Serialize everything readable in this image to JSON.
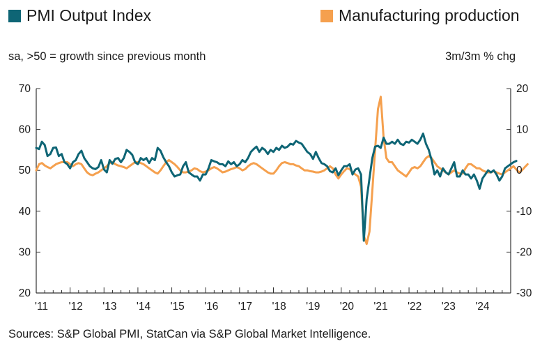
{
  "chart_data": {
    "type": "line",
    "title": "",
    "subtitle_left": "sa, >50 = growth since previous month",
    "subtitle_right": "3m/3m % chg",
    "source": "Sources: S&P Global PMI, StatCan via S&P Global Market Intelligence.",
    "x_start": 2011.0,
    "x_end": 2025.0,
    "x_tick_labels": [
      "'11",
      "'12",
      "'13",
      "'14",
      "'15",
      "'16",
      "'17",
      "'18",
      "'19",
      "'20",
      "'21",
      "'22",
      "'23",
      "'24"
    ],
    "y_left": {
      "ylim": [
        20,
        70
      ],
      "ticks": [
        20,
        30,
        40,
        50,
        60,
        70
      ]
    },
    "y_right": {
      "ylim": [
        -30,
        20
      ],
      "ticks": [
        -30,
        -20,
        -10,
        0,
        10,
        20
      ]
    },
    "series": [
      {
        "name": "PMI Output Index",
        "color": "#0e6575",
        "axis": "left",
        "values": [
          55.5,
          55.2,
          57.0,
          56.2,
          53.5,
          54.0,
          55.5,
          55.6,
          53.5,
          54.0,
          52.0,
          51.5,
          50.5,
          52.0,
          52.5,
          54.0,
          54.8,
          53.0,
          52.0,
          51.0,
          50.5,
          50.3,
          50.8,
          52.5,
          50.2,
          49.5,
          52.5,
          51.6,
          52.8,
          53.0,
          52.0,
          53.0,
          55.0,
          54.5,
          53.8,
          52.0,
          51.5,
          53.0,
          52.5,
          53.0,
          51.8,
          53.0,
          52.5,
          55.5,
          54.8,
          53.2,
          52.0,
          51.0,
          49.5,
          48.5,
          48.8,
          49.0,
          51.0,
          52.0,
          49.5,
          49.0,
          48.5,
          48.5,
          47.5,
          49.0,
          49.0,
          50.5,
          52.5,
          52.2,
          52.0,
          51.5,
          51.5,
          51.0,
          52.2,
          51.5,
          52.0,
          51.0,
          51.5,
          52.5,
          52.0,
          53.0,
          54.5,
          55.2,
          55.8,
          54.5,
          55.5,
          55.0,
          54.0,
          55.0,
          54.5,
          55.5,
          55.0,
          56.0,
          55.5,
          55.8,
          56.5,
          56.3,
          57.2,
          56.8,
          56.5,
          55.5,
          54.5,
          54.0,
          52.8,
          54.5,
          53.0,
          51.8,
          51.5,
          51.0,
          49.8,
          49.5,
          50.5,
          48.8,
          50.0,
          51.0,
          51.0,
          51.5,
          49.0,
          50.2,
          50.5,
          49.0,
          32.8,
          43.0,
          48.0,
          53.0,
          55.8,
          56.0,
          55.5,
          58.0,
          56.5,
          56.5,
          57.0,
          56.5,
          57.5,
          56.5,
          56.2,
          57.0,
          56.8,
          57.5,
          57.0,
          56.5,
          57.5,
          59.0,
          56.5,
          55.0,
          52.5,
          49.0,
          50.0,
          48.5,
          50.5,
          49.5,
          49.0,
          50.5,
          52.0,
          48.5,
          48.5,
          50.0,
          49.0,
          49.0,
          48.0,
          49.0,
          47.5,
          45.5,
          48.0,
          49.0,
          50.0,
          49.5,
          50.0,
          49.0,
          47.5,
          48.5,
          50.5,
          51.0,
          51.5,
          52.0,
          52.3
        ]
      },
      {
        "name": "Manufacturing production",
        "color": "#f5a04e",
        "axis": "right",
        "values": [
          0.0,
          1.5,
          1.8,
          1.2,
          0.8,
          0.5,
          1.0,
          1.5,
          1.8,
          2.0,
          2.0,
          2.0,
          1.5,
          1.0,
          1.5,
          1.8,
          1.5,
          0.5,
          -0.5,
          -1.0,
          -1.2,
          -0.8,
          -0.5,
          0.0,
          0.5,
          1.0,
          1.8,
          2.0,
          1.5,
          1.2,
          1.0,
          0.8,
          0.5,
          1.0,
          1.5,
          2.0,
          2.0,
          1.8,
          1.5,
          1.0,
          0.5,
          0.0,
          -0.5,
          -0.8,
          0.0,
          1.0,
          2.0,
          2.5,
          2.0,
          1.5,
          0.8,
          0.0,
          -0.5,
          -0.5,
          -0.3,
          0.0,
          0.5,
          0.3,
          -0.2,
          -0.5,
          -0.3,
          0.0,
          0.5,
          0.8,
          0.5,
          0.0,
          -0.5,
          -0.3,
          0.0,
          0.3,
          0.5,
          0.8,
          0.5,
          0.0,
          0.3,
          1.0,
          1.5,
          1.8,
          1.5,
          1.0,
          0.5,
          0.0,
          -0.5,
          -0.8,
          -0.8,
          0.0,
          1.0,
          1.8,
          2.0,
          1.8,
          1.5,
          1.5,
          1.2,
          1.0,
          0.5,
          0.0,
          0.0,
          -0.2,
          -0.3,
          -0.5,
          -0.5,
          -0.3,
          0.0,
          0.5,
          1.0,
          0.5,
          -1.0,
          -2.0,
          -1.0,
          -0.2,
          0.5,
          0.3,
          -0.5,
          -1.0,
          -1.5,
          -4.0,
          -16.0,
          -18.0,
          -15.0,
          -5.0,
          5.0,
          15.0,
          18.0,
          8.0,
          3.0,
          2.0,
          2.0,
          1.0,
          0.0,
          -0.5,
          -1.0,
          -1.5,
          -0.5,
          0.5,
          0.8,
          0.5,
          1.0,
          2.0,
          3.0,
          3.5,
          3.0,
          2.0,
          1.0,
          0.5,
          0.0,
          -0.5,
          -1.0,
          -0.5,
          0.0,
          -0.5,
          -0.8,
          -0.8,
          0.5,
          1.5,
          1.5,
          1.0,
          0.5,
          0.5,
          0.0,
          -0.3,
          -0.5,
          -0.5,
          -0.2,
          -0.5,
          -0.8,
          -1.0,
          -0.5,
          0.0,
          0.5,
          1.0,
          0.2,
          -0.5,
          0.0,
          0.8,
          1.5
        ]
      }
    ]
  },
  "legend": [
    {
      "label": "PMI Output Index",
      "color": "#0e6575"
    },
    {
      "label": "Manufacturing production",
      "color": "#f5a04e"
    }
  ]
}
